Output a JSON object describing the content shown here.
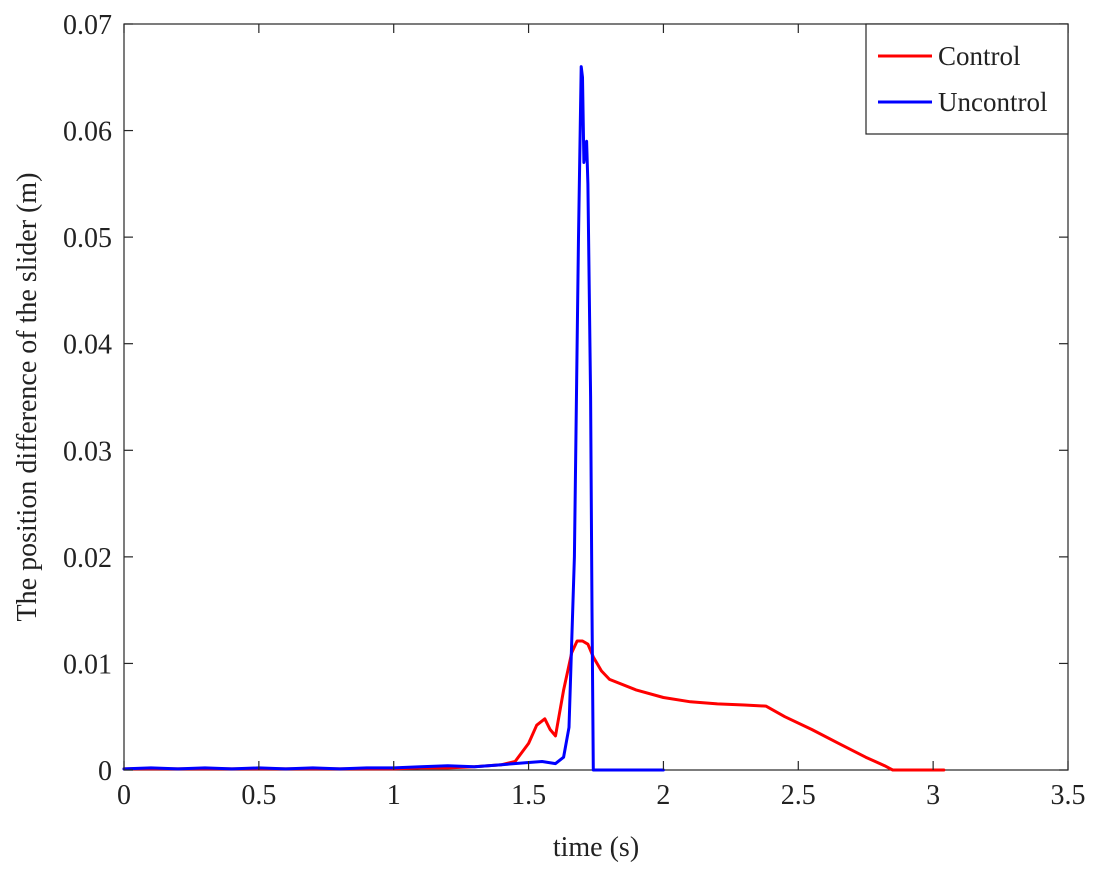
{
  "chart_data": {
    "type": "line",
    "title": "",
    "xlabel": "time (s)",
    "ylabel": "The position difference of the slider (m)",
    "xlim": [
      0,
      3.5
    ],
    "ylim": [
      0,
      0.07
    ],
    "xticks": [
      0,
      0.5,
      1,
      1.5,
      2,
      2.5,
      3,
      3.5
    ],
    "xtick_labels": [
      "0",
      "0.5",
      "1",
      "1.5",
      "2",
      "2.5",
      "3",
      "3.5"
    ],
    "yticks": [
      0,
      0.01,
      0.02,
      0.03,
      0.04,
      0.05,
      0.06,
      0.07
    ],
    "ytick_labels": [
      "0",
      "0.01",
      "0.02",
      "0.03",
      "0.04",
      "0.05",
      "0.06",
      "0.07"
    ],
    "grid": false,
    "legend_position": "top-right",
    "series": [
      {
        "name": "Control",
        "color": "#ff0000",
        "x": [
          0,
          0.1,
          0.2,
          0.3,
          0.4,
          0.5,
          0.6,
          0.7,
          0.8,
          0.9,
          1.0,
          1.1,
          1.2,
          1.3,
          1.4,
          1.45,
          1.5,
          1.53,
          1.56,
          1.58,
          1.6,
          1.63,
          1.66,
          1.68,
          1.7,
          1.72,
          1.74,
          1.77,
          1.8,
          1.9,
          2.0,
          2.1,
          2.2,
          2.3,
          2.38,
          2.45,
          2.55,
          2.65,
          2.75,
          2.82,
          2.85,
          3.0,
          3.04
        ],
        "y": [
          0.0001,
          0.0001,
          0.0001,
          0.0001,
          0.0001,
          0.0001,
          0.0001,
          0.0001,
          0.0001,
          0.0001,
          0.0001,
          0.0002,
          0.0002,
          0.0003,
          0.0005,
          0.0008,
          0.0025,
          0.0042,
          0.0048,
          0.0038,
          0.0032,
          0.0075,
          0.011,
          0.0121,
          0.0121,
          0.0118,
          0.0106,
          0.0093,
          0.0085,
          0.0075,
          0.0068,
          0.0064,
          0.0062,
          0.0061,
          0.006,
          0.005,
          0.0038,
          0.0025,
          0.0012,
          0.0004,
          0.0,
          0.0,
          0.0
        ]
      },
      {
        "name": "Uncontrol",
        "color": "#0000ff",
        "x": [
          0,
          0.1,
          0.2,
          0.3,
          0.4,
          0.5,
          0.6,
          0.7,
          0.8,
          0.9,
          1.0,
          1.1,
          1.2,
          1.3,
          1.4,
          1.5,
          1.55,
          1.6,
          1.63,
          1.65,
          1.67,
          1.685,
          1.695,
          1.7,
          1.705,
          1.71,
          1.715,
          1.72,
          1.73,
          1.735,
          1.74,
          1.8,
          1.9,
          2.0
        ],
        "y": [
          0.0001,
          0.0002,
          0.0001,
          0.0002,
          0.0001,
          0.0002,
          0.0001,
          0.0002,
          0.0001,
          0.0002,
          0.0002,
          0.0003,
          0.0004,
          0.0003,
          0.0005,
          0.0007,
          0.0008,
          0.0006,
          0.0012,
          0.004,
          0.02,
          0.05,
          0.066,
          0.065,
          0.057,
          0.058,
          0.059,
          0.055,
          0.035,
          0.015,
          0.0,
          0.0,
          0.0,
          0.0
        ]
      }
    ]
  }
}
